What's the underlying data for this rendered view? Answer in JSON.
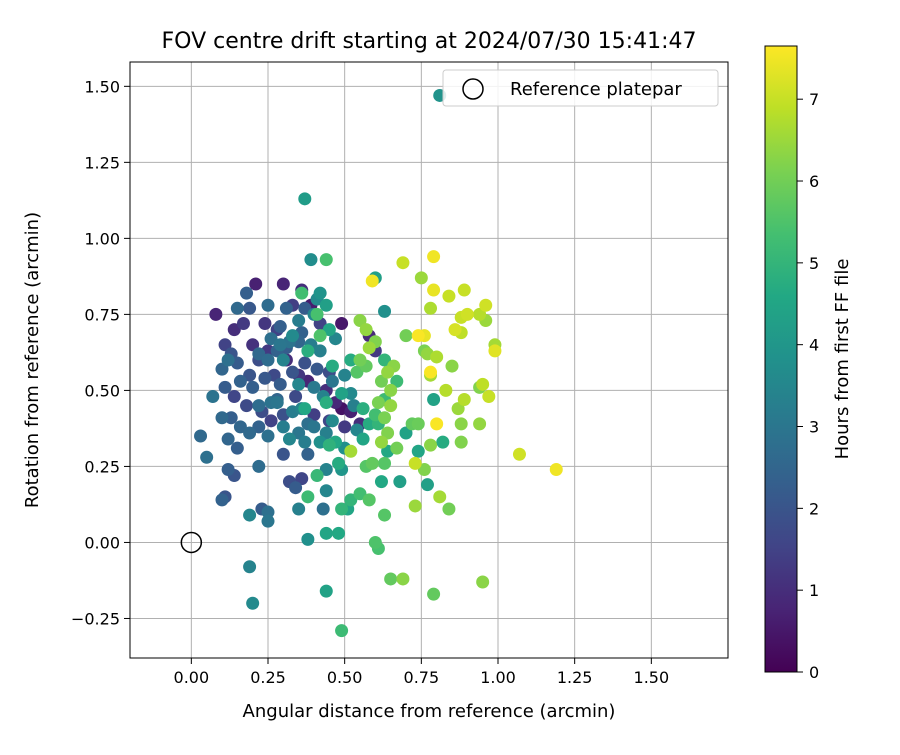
{
  "chart_data": {
    "type": "scatter",
    "title": "FOV centre drift starting at 2024/07/30 15:41:47",
    "xlabel": "Angular distance from reference (arcmin)",
    "ylabel": "Rotation from reference (arcmin)",
    "xlim": [
      -0.2,
      1.75
    ],
    "ylim": [
      -0.38,
      1.58
    ],
    "xticks": [
      0.0,
      0.25,
      0.5,
      0.75,
      1.0,
      1.25,
      1.5
    ],
    "xtick_labels": [
      "0.00",
      "0.25",
      "0.50",
      "0.75",
      "1.00",
      "1.25",
      "1.50"
    ],
    "yticks": [
      -0.25,
      0.0,
      0.25,
      0.5,
      0.75,
      1.0,
      1.25,
      1.5
    ],
    "ytick_labels": [
      "−0.25",
      "0.00",
      "0.25",
      "0.50",
      "0.75",
      "1.00",
      "1.25",
      "1.50"
    ],
    "grid": true,
    "legend": {
      "placement": "top-right",
      "label": "Reference platepar"
    },
    "reference_point": {
      "x": 0.0,
      "y": 0.0
    },
    "colorbar": {
      "label": "Hours from first FF file",
      "range": [
        0,
        7.65
      ],
      "ticks": [
        0,
        1,
        2,
        3,
        4,
        5,
        6,
        7
      ],
      "tick_labels": [
        "0",
        "1",
        "2",
        "3",
        "4",
        "5",
        "6",
        "7"
      ],
      "colormap": "viridis"
    },
    "points": [
      [
        0.08,
        0.75,
        0.8
      ],
      [
        0.11,
        0.65,
        1.5
      ],
      [
        0.14,
        0.7,
        1.0
      ],
      [
        0.17,
        0.72,
        1.3
      ],
      [
        0.21,
        0.85,
        0.7
      ],
      [
        0.24,
        0.72,
        1.2
      ],
      [
        0.3,
        0.85,
        0.8
      ],
      [
        0.33,
        0.78,
        1.4
      ],
      [
        0.36,
        0.83,
        1.0
      ],
      [
        0.39,
        0.78,
        0.6
      ],
      [
        0.42,
        0.72,
        1.5
      ],
      [
        0.49,
        0.72,
        0.5
      ],
      [
        0.28,
        0.7,
        1.5
      ],
      [
        0.2,
        0.65,
        1.1
      ],
      [
        0.25,
        0.63,
        1.3
      ],
      [
        0.31,
        0.6,
        1.0
      ],
      [
        0.35,
        0.55,
        1.2
      ],
      [
        0.38,
        0.53,
        0.8
      ],
      [
        0.44,
        0.5,
        1.0
      ],
      [
        0.47,
        0.46,
        0.9
      ],
      [
        0.52,
        0.43,
        0.7
      ],
      [
        0.49,
        0.44,
        0.4
      ],
      [
        0.55,
        0.39,
        1.0
      ],
      [
        0.58,
        0.68,
        0.9
      ],
      [
        0.6,
        0.63,
        1.3
      ],
      [
        0.22,
        0.6,
        1.8
      ],
      [
        0.19,
        0.55,
        2.0
      ],
      [
        0.27,
        0.55,
        1.7
      ],
      [
        0.14,
        0.48,
        1.6
      ],
      [
        0.18,
        0.45,
        1.7
      ],
      [
        0.23,
        0.43,
        1.8
      ],
      [
        0.26,
        0.4,
        1.5
      ],
      [
        0.3,
        0.42,
        1.9
      ],
      [
        0.34,
        0.48,
        1.7
      ],
      [
        0.4,
        0.42,
        1.4
      ],
      [
        0.45,
        0.4,
        1.6
      ],
      [
        0.5,
        0.38,
        1.3
      ],
      [
        0.15,
        0.59,
        2.2
      ],
      [
        0.13,
        0.62,
        2.0
      ],
      [
        0.1,
        0.57,
        2.5
      ],
      [
        0.11,
        0.51,
        2.2
      ],
      [
        0.16,
        0.53,
        2.4
      ],
      [
        0.2,
        0.51,
        2.3
      ],
      [
        0.24,
        0.54,
        2.1
      ],
      [
        0.29,
        0.52,
        2.2
      ],
      [
        0.33,
        0.56,
        2.0
      ],
      [
        0.37,
        0.59,
        1.9
      ],
      [
        0.41,
        0.57,
        2.1
      ],
      [
        0.45,
        0.56,
        1.8
      ],
      [
        0.22,
        0.62,
        2.6
      ],
      [
        0.25,
        0.6,
        2.7
      ],
      [
        0.28,
        0.63,
        2.4
      ],
      [
        0.31,
        0.64,
        2.2
      ],
      [
        0.35,
        0.66,
        2.5
      ],
      [
        0.26,
        0.67,
        2.8
      ],
      [
        0.32,
        0.66,
        2.9
      ],
      [
        0.36,
        0.69,
        2.4
      ],
      [
        0.29,
        0.71,
        2.3
      ],
      [
        0.25,
        0.78,
        2.7
      ],
      [
        0.31,
        0.77,
        2.4
      ],
      [
        0.37,
        0.77,
        2.2
      ],
      [
        0.18,
        0.82,
        2.3
      ],
      [
        0.15,
        0.77,
        2.6
      ],
      [
        0.19,
        0.77,
        2.1
      ],
      [
        0.12,
        0.6,
        2.8
      ],
      [
        0.1,
        0.41,
        2.6
      ],
      [
        0.13,
        0.41,
        2.3
      ],
      [
        0.16,
        0.38,
        2.5
      ],
      [
        0.12,
        0.34,
        2.5
      ],
      [
        0.15,
        0.31,
        2.3
      ],
      [
        0.19,
        0.36,
        2.6
      ],
      [
        0.22,
        0.38,
        2.4
      ],
      [
        0.25,
        0.35,
        2.8
      ],
      [
        0.22,
        0.45,
        2.7
      ],
      [
        0.26,
        0.46,
        2.9
      ],
      [
        0.28,
        0.47,
        2.5
      ],
      [
        0.14,
        0.22,
        2.0
      ],
      [
        0.12,
        0.24,
        2.3
      ],
      [
        0.11,
        0.15,
        2.0
      ],
      [
        0.1,
        0.14,
        2.4
      ],
      [
        0.03,
        0.35,
        2.6
      ],
      [
        0.05,
        0.28,
        2.8
      ],
      [
        0.07,
        0.48,
        2.9
      ],
      [
        0.3,
        0.29,
        2.0
      ],
      [
        0.32,
        0.2,
        1.8
      ],
      [
        0.36,
        0.21,
        1.6
      ],
      [
        0.34,
        0.18,
        2.2
      ],
      [
        0.38,
        0.29,
        2.4
      ],
      [
        0.23,
        0.11,
        2.2
      ],
      [
        0.25,
        0.1,
        2.8
      ],
      [
        0.25,
        0.07,
        3.0
      ],
      [
        0.22,
        0.25,
        2.7
      ],
      [
        0.19,
        0.09,
        3.5
      ],
      [
        0.19,
        -0.08,
        3.4
      ],
      [
        0.2,
        -0.2,
        3.6
      ],
      [
        0.35,
        0.11,
        3.3
      ],
      [
        0.38,
        0.01,
        3.8
      ],
      [
        0.44,
        0.17,
        3.5
      ],
      [
        0.43,
        0.11,
        2.8
      ],
      [
        0.44,
        0.24,
        3.4
      ],
      [
        0.49,
        0.24,
        4.0
      ],
      [
        0.4,
        0.38,
        3.0
      ],
      [
        0.44,
        0.36,
        3.3
      ],
      [
        0.42,
        0.33,
        3.8
      ],
      [
        0.37,
        0.33,
        3.2
      ],
      [
        0.35,
        0.36,
        3.0
      ],
      [
        0.38,
        0.39,
        2.8
      ],
      [
        0.3,
        0.38,
        3.2
      ],
      [
        0.32,
        0.34,
        3.5
      ],
      [
        0.28,
        0.46,
        3.0
      ],
      [
        0.33,
        0.43,
        3.2
      ],
      [
        0.36,
        0.44,
        3.4
      ],
      [
        0.4,
        0.51,
        3.1
      ],
      [
        0.43,
        0.48,
        3.4
      ],
      [
        0.46,
        0.53,
        3.0
      ],
      [
        0.35,
        0.52,
        3.5
      ],
      [
        0.39,
        0.65,
        3.2
      ],
      [
        0.42,
        0.63,
        3.3
      ],
      [
        0.47,
        0.67,
        3.5
      ],
      [
        0.5,
        0.55,
        3.4
      ],
      [
        0.52,
        0.49,
        3.6
      ],
      [
        0.53,
        0.45,
        3.3
      ],
      [
        0.46,
        0.4,
        3.6
      ],
      [
        0.5,
        0.31,
        3.8
      ],
      [
        0.54,
        0.37,
        3.5
      ],
      [
        0.41,
        0.8,
        3.6
      ],
      [
        0.42,
        0.82,
        3.9
      ],
      [
        0.39,
        0.93,
        3.7
      ],
      [
        0.37,
        1.13,
        4.2
      ],
      [
        0.81,
        1.47,
        3.9
      ],
      [
        0.63,
        0.76,
        3.8
      ],
      [
        0.6,
        0.87,
        4.3
      ],
      [
        0.3,
        0.6,
        3.4
      ],
      [
        0.29,
        0.65,
        3.0
      ],
      [
        0.33,
        0.68,
        3.6
      ],
      [
        0.35,
        0.73,
        3.2
      ],
      [
        0.4,
        0.75,
        3.5
      ],
      [
        0.44,
        0.78,
        4.3
      ],
      [
        0.45,
        0.7,
        4.5
      ],
      [
        0.46,
        0.58,
        4.7
      ],
      [
        0.52,
        0.6,
        4.7
      ],
      [
        0.49,
        0.49,
        4.4
      ],
      [
        0.44,
        0.46,
        4.8
      ],
      [
        0.47,
        0.33,
        4.6
      ],
      [
        0.45,
        0.32,
        4.9
      ],
      [
        0.48,
        0.26,
        4.7
      ],
      [
        0.56,
        0.34,
        4.5
      ],
      [
        0.58,
        0.39,
        4.7
      ],
      [
        0.61,
        0.39,
        5.0
      ],
      [
        0.64,
        0.3,
        4.6
      ],
      [
        0.62,
        0.2,
        4.6
      ],
      [
        0.68,
        0.2,
        4.3
      ],
      [
        0.7,
        0.36,
        4.4
      ],
      [
        0.74,
        0.3,
        4.5
      ],
      [
        0.77,
        0.19,
        4.3
      ],
      [
        0.79,
        0.47,
        4.4
      ],
      [
        0.82,
        0.33,
        4.7
      ],
      [
        0.63,
        0.6,
        5.0
      ],
      [
        0.67,
        0.53,
        5.2
      ],
      [
        0.63,
        0.47,
        5.2
      ],
      [
        0.6,
        0.42,
        5.3
      ],
      [
        0.56,
        0.44,
        4.8
      ],
      [
        0.37,
        0.44,
        4.6
      ],
      [
        0.38,
        0.63,
        4.8
      ],
      [
        0.36,
        0.82,
        5.3
      ],
      [
        0.41,
        0.75,
        5.4
      ],
      [
        0.42,
        0.68,
        5.5
      ],
      [
        0.44,
        0.93,
        5.4
      ],
      [
        0.44,
        0.03,
        4.5
      ],
      [
        0.48,
        0.03,
        4.6
      ],
      [
        0.49,
        -0.29,
        5.2
      ],
      [
        0.44,
        -0.16,
        4.4
      ],
      [
        0.38,
        0.15,
        5.2
      ],
      [
        0.41,
        0.22,
        5.1
      ],
      [
        0.49,
        0.11,
        5.0
      ],
      [
        0.51,
        0.11,
        4.5
      ],
      [
        0.52,
        0.14,
        5.0
      ],
      [
        0.55,
        0.16,
        5.3
      ],
      [
        0.58,
        0.14,
        5.6
      ],
      [
        0.57,
        0.25,
        5.6
      ],
      [
        0.59,
        0.26,
        5.8
      ],
      [
        0.63,
        0.26,
        5.6
      ],
      [
        0.63,
        0.09,
        5.6
      ],
      [
        0.6,
        0.0,
        5.5
      ],
      [
        0.61,
        -0.02,
        5.4
      ],
      [
        0.65,
        -0.12,
        5.8
      ],
      [
        0.69,
        -0.12,
        6.3
      ],
      [
        0.79,
        -0.17,
        5.8
      ],
      [
        0.95,
        -0.13,
        6.3
      ],
      [
        0.73,
        0.12,
        6.5
      ],
      [
        0.81,
        0.15,
        6.6
      ],
      [
        0.84,
        0.11,
        6.0
      ],
      [
        0.76,
        0.24,
        6.2
      ],
      [
        0.78,
        0.32,
        6.3
      ],
      [
        0.74,
        0.39,
        5.9
      ],
      [
        0.72,
        0.39,
        5.8
      ],
      [
        0.67,
        0.31,
        6.0
      ],
      [
        0.64,
        0.36,
        6.2
      ],
      [
        0.63,
        0.41,
        6.1
      ],
      [
        0.65,
        0.45,
        6.4
      ],
      [
        0.61,
        0.46,
        6.1
      ],
      [
        0.65,
        0.5,
        6.3
      ],
      [
        0.62,
        0.53,
        6.0
      ],
      [
        0.64,
        0.56,
        6.4
      ],
      [
        0.62,
        0.33,
        6.4
      ],
      [
        0.55,
        0.6,
        6.0
      ],
      [
        0.57,
        0.58,
        5.8
      ],
      [
        0.54,
        0.56,
        5.6
      ],
      [
        0.52,
        0.3,
        6.6
      ],
      [
        0.57,
        0.7,
        6.4
      ],
      [
        0.55,
        0.73,
        6.3
      ],
      [
        0.58,
        0.64,
        6.5
      ],
      [
        0.6,
        0.66,
        6.2
      ],
      [
        0.66,
        0.58,
        6.3
      ],
      [
        0.7,
        0.68,
        6.0
      ],
      [
        0.76,
        0.63,
        6.1
      ],
      [
        0.77,
        0.62,
        6.4
      ],
      [
        0.78,
        0.55,
        6.6
      ],
      [
        0.8,
        0.61,
        6.7
      ],
      [
        0.85,
        0.58,
        6.3
      ],
      [
        0.83,
        0.5,
        6.8
      ],
      [
        0.87,
        0.44,
        6.5
      ],
      [
        0.89,
        0.47,
        6.8
      ],
      [
        0.88,
        0.39,
        6.3
      ],
      [
        0.88,
        0.33,
        6.2
      ],
      [
        0.94,
        0.39,
        6.4
      ],
      [
        0.94,
        0.51,
        6.2
      ],
      [
        0.95,
        0.52,
        6.9
      ],
      [
        0.97,
        0.48,
        7.0
      ],
      [
        0.99,
        0.63,
        7.3
      ],
      [
        0.96,
        0.73,
        6.5
      ],
      [
        0.99,
        0.65,
        6.6
      ],
      [
        0.94,
        0.75,
        6.8
      ],
      [
        0.86,
        0.7,
        7.2
      ],
      [
        0.88,
        0.69,
        6.9
      ],
      [
        0.88,
        0.74,
        7.0
      ],
      [
        0.9,
        0.75,
        7.1
      ],
      [
        0.84,
        0.81,
        7.0
      ],
      [
        0.89,
        0.83,
        7.0
      ],
      [
        0.96,
        0.78,
        7.1
      ],
      [
        0.78,
        0.77,
        6.7
      ],
      [
        0.75,
        0.87,
        6.5
      ],
      [
        0.79,
        0.83,
        7.4
      ],
      [
        0.79,
        0.94,
        7.5
      ],
      [
        0.69,
        0.92,
        7.0
      ],
      [
        0.59,
        0.86,
        7.5
      ],
      [
        0.74,
        0.68,
        7.6
      ],
      [
        0.76,
        0.68,
        7.4
      ],
      [
        0.78,
        0.56,
        7.6
      ],
      [
        0.8,
        0.39,
        7.6
      ],
      [
        0.73,
        0.26,
        7.0
      ],
      [
        1.07,
        0.29,
        7.1
      ],
      [
        1.19,
        0.24,
        7.5
      ]
    ]
  }
}
